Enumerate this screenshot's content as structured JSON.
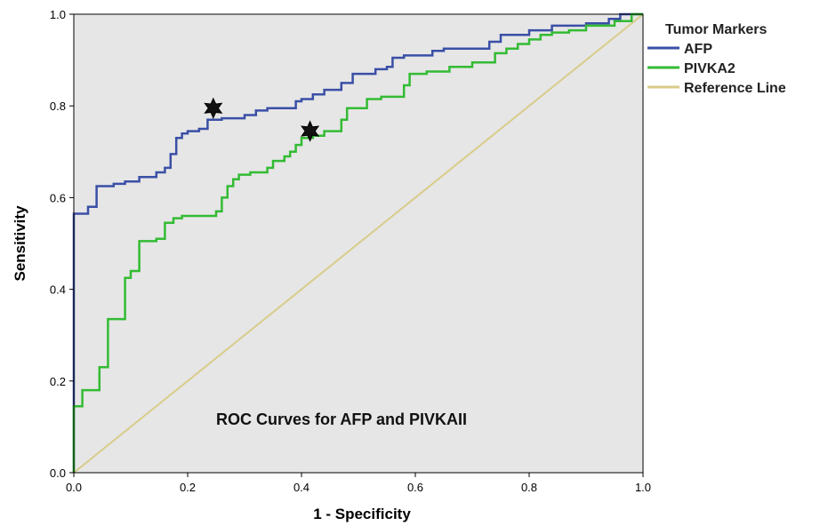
{
  "chart_data": {
    "type": "line",
    "title": "ROC Curves for AFP and PIVKAII",
    "xlabel": "1 - Specificity",
    "ylabel": "Sensitivity",
    "xlim": [
      0,
      1
    ],
    "ylim": [
      0,
      1
    ],
    "x_ticks": [
      "0.0",
      "0.2",
      "0.4",
      "0.6",
      "0.8",
      "1.0"
    ],
    "y_ticks": [
      "0.0",
      "0.2",
      "0.4",
      "0.6",
      "0.8",
      "1.0"
    ],
    "grid": false,
    "background_color": "#e6e6e6",
    "legend": {
      "title": "Tumor Markers",
      "placement": "right"
    },
    "series": [
      {
        "name": "AFP",
        "color": "#3a4fa6",
        "points": [
          [
            0,
            0
          ],
          [
            0,
            0.565
          ],
          [
            0.025,
            0.565
          ],
          [
            0.025,
            0.58
          ],
          [
            0.04,
            0.58
          ],
          [
            0.04,
            0.625
          ],
          [
            0.07,
            0.625
          ],
          [
            0.07,
            0.63
          ],
          [
            0.09,
            0.63
          ],
          [
            0.09,
            0.635
          ],
          [
            0.115,
            0.635
          ],
          [
            0.115,
            0.645
          ],
          [
            0.145,
            0.645
          ],
          [
            0.145,
            0.655
          ],
          [
            0.16,
            0.655
          ],
          [
            0.16,
            0.665
          ],
          [
            0.17,
            0.665
          ],
          [
            0.17,
            0.695
          ],
          [
            0.18,
            0.695
          ],
          [
            0.18,
            0.73
          ],
          [
            0.19,
            0.73
          ],
          [
            0.19,
            0.74
          ],
          [
            0.2,
            0.74
          ],
          [
            0.2,
            0.745
          ],
          [
            0.22,
            0.745
          ],
          [
            0.22,
            0.75
          ],
          [
            0.235,
            0.75
          ],
          [
            0.235,
            0.77
          ],
          [
            0.26,
            0.77
          ],
          [
            0.26,
            0.773
          ],
          [
            0.3,
            0.773
          ],
          [
            0.3,
            0.78
          ],
          [
            0.32,
            0.78
          ],
          [
            0.32,
            0.79
          ],
          [
            0.34,
            0.79
          ],
          [
            0.34,
            0.795
          ],
          [
            0.39,
            0.795
          ],
          [
            0.39,
            0.81
          ],
          [
            0.4,
            0.81
          ],
          [
            0.4,
            0.815
          ],
          [
            0.42,
            0.815
          ],
          [
            0.42,
            0.825
          ],
          [
            0.44,
            0.825
          ],
          [
            0.44,
            0.835
          ],
          [
            0.47,
            0.835
          ],
          [
            0.47,
            0.85
          ],
          [
            0.49,
            0.85
          ],
          [
            0.49,
            0.87
          ],
          [
            0.53,
            0.87
          ],
          [
            0.53,
            0.88
          ],
          [
            0.55,
            0.88
          ],
          [
            0.55,
            0.885
          ],
          [
            0.56,
            0.885
          ],
          [
            0.56,
            0.905
          ],
          [
            0.58,
            0.905
          ],
          [
            0.58,
            0.91
          ],
          [
            0.63,
            0.91
          ],
          [
            0.63,
            0.92
          ],
          [
            0.65,
            0.92
          ],
          [
            0.65,
            0.925
          ],
          [
            0.73,
            0.925
          ],
          [
            0.73,
            0.94
          ],
          [
            0.75,
            0.94
          ],
          [
            0.75,
            0.955
          ],
          [
            0.8,
            0.955
          ],
          [
            0.8,
            0.965
          ],
          [
            0.84,
            0.965
          ],
          [
            0.84,
            0.975
          ],
          [
            0.9,
            0.975
          ],
          [
            0.9,
            0.98
          ],
          [
            0.94,
            0.98
          ],
          [
            0.94,
            0.99
          ],
          [
            0.96,
            0.99
          ],
          [
            0.96,
            1.0
          ],
          [
            1.0,
            1.0
          ]
        ],
        "cutoff_marker": {
          "x": 0.245,
          "y": 0.795
        }
      },
      {
        "name": "PIVKA2",
        "color": "#33bb33",
        "points": [
          [
            0,
            0
          ],
          [
            0,
            0.145
          ],
          [
            0.015,
            0.145
          ],
          [
            0.015,
            0.18
          ],
          [
            0.045,
            0.18
          ],
          [
            0.045,
            0.23
          ],
          [
            0.06,
            0.23
          ],
          [
            0.06,
            0.335
          ],
          [
            0.09,
            0.335
          ],
          [
            0.09,
            0.425
          ],
          [
            0.1,
            0.425
          ],
          [
            0.1,
            0.44
          ],
          [
            0.115,
            0.44
          ],
          [
            0.115,
            0.505
          ],
          [
            0.145,
            0.505
          ],
          [
            0.145,
            0.51
          ],
          [
            0.16,
            0.51
          ],
          [
            0.16,
            0.545
          ],
          [
            0.175,
            0.545
          ],
          [
            0.175,
            0.555
          ],
          [
            0.19,
            0.555
          ],
          [
            0.19,
            0.56
          ],
          [
            0.25,
            0.56
          ],
          [
            0.25,
            0.57
          ],
          [
            0.26,
            0.57
          ],
          [
            0.26,
            0.6
          ],
          [
            0.27,
            0.6
          ],
          [
            0.27,
            0.625
          ],
          [
            0.28,
            0.625
          ],
          [
            0.28,
            0.64
          ],
          [
            0.29,
            0.64
          ],
          [
            0.29,
            0.65
          ],
          [
            0.31,
            0.65
          ],
          [
            0.31,
            0.655
          ],
          [
            0.34,
            0.655
          ],
          [
            0.34,
            0.665
          ],
          [
            0.35,
            0.665
          ],
          [
            0.35,
            0.68
          ],
          [
            0.37,
            0.68
          ],
          [
            0.37,
            0.69
          ],
          [
            0.38,
            0.69
          ],
          [
            0.38,
            0.7
          ],
          [
            0.39,
            0.7
          ],
          [
            0.39,
            0.715
          ],
          [
            0.4,
            0.715
          ],
          [
            0.4,
            0.73
          ],
          [
            0.42,
            0.73
          ],
          [
            0.42,
            0.735
          ],
          [
            0.44,
            0.735
          ],
          [
            0.44,
            0.745
          ],
          [
            0.47,
            0.745
          ],
          [
            0.47,
            0.77
          ],
          [
            0.48,
            0.77
          ],
          [
            0.48,
            0.795
          ],
          [
            0.515,
            0.795
          ],
          [
            0.515,
            0.815
          ],
          [
            0.54,
            0.815
          ],
          [
            0.54,
            0.82
          ],
          [
            0.58,
            0.82
          ],
          [
            0.58,
            0.845
          ],
          [
            0.59,
            0.845
          ],
          [
            0.59,
            0.87
          ],
          [
            0.62,
            0.87
          ],
          [
            0.62,
            0.875
          ],
          [
            0.66,
            0.875
          ],
          [
            0.66,
            0.885
          ],
          [
            0.7,
            0.885
          ],
          [
            0.7,
            0.895
          ],
          [
            0.74,
            0.895
          ],
          [
            0.74,
            0.915
          ],
          [
            0.76,
            0.915
          ],
          [
            0.76,
            0.925
          ],
          [
            0.78,
            0.925
          ],
          [
            0.78,
            0.935
          ],
          [
            0.8,
            0.935
          ],
          [
            0.8,
            0.945
          ],
          [
            0.82,
            0.945
          ],
          [
            0.82,
            0.955
          ],
          [
            0.84,
            0.955
          ],
          [
            0.84,
            0.96
          ],
          [
            0.87,
            0.96
          ],
          [
            0.87,
            0.965
          ],
          [
            0.9,
            0.965
          ],
          [
            0.9,
            0.975
          ],
          [
            0.95,
            0.975
          ],
          [
            0.95,
            0.985
          ],
          [
            0.98,
            0.985
          ],
          [
            0.98,
            1.0
          ],
          [
            1.0,
            1.0
          ]
        ],
        "cutoff_marker": {
          "x": 0.415,
          "y": 0.745
        }
      },
      {
        "name": "Reference Line",
        "color": "#d9cc8a",
        "points": [
          [
            0,
            0
          ],
          [
            1,
            1
          ]
        ]
      }
    ]
  }
}
